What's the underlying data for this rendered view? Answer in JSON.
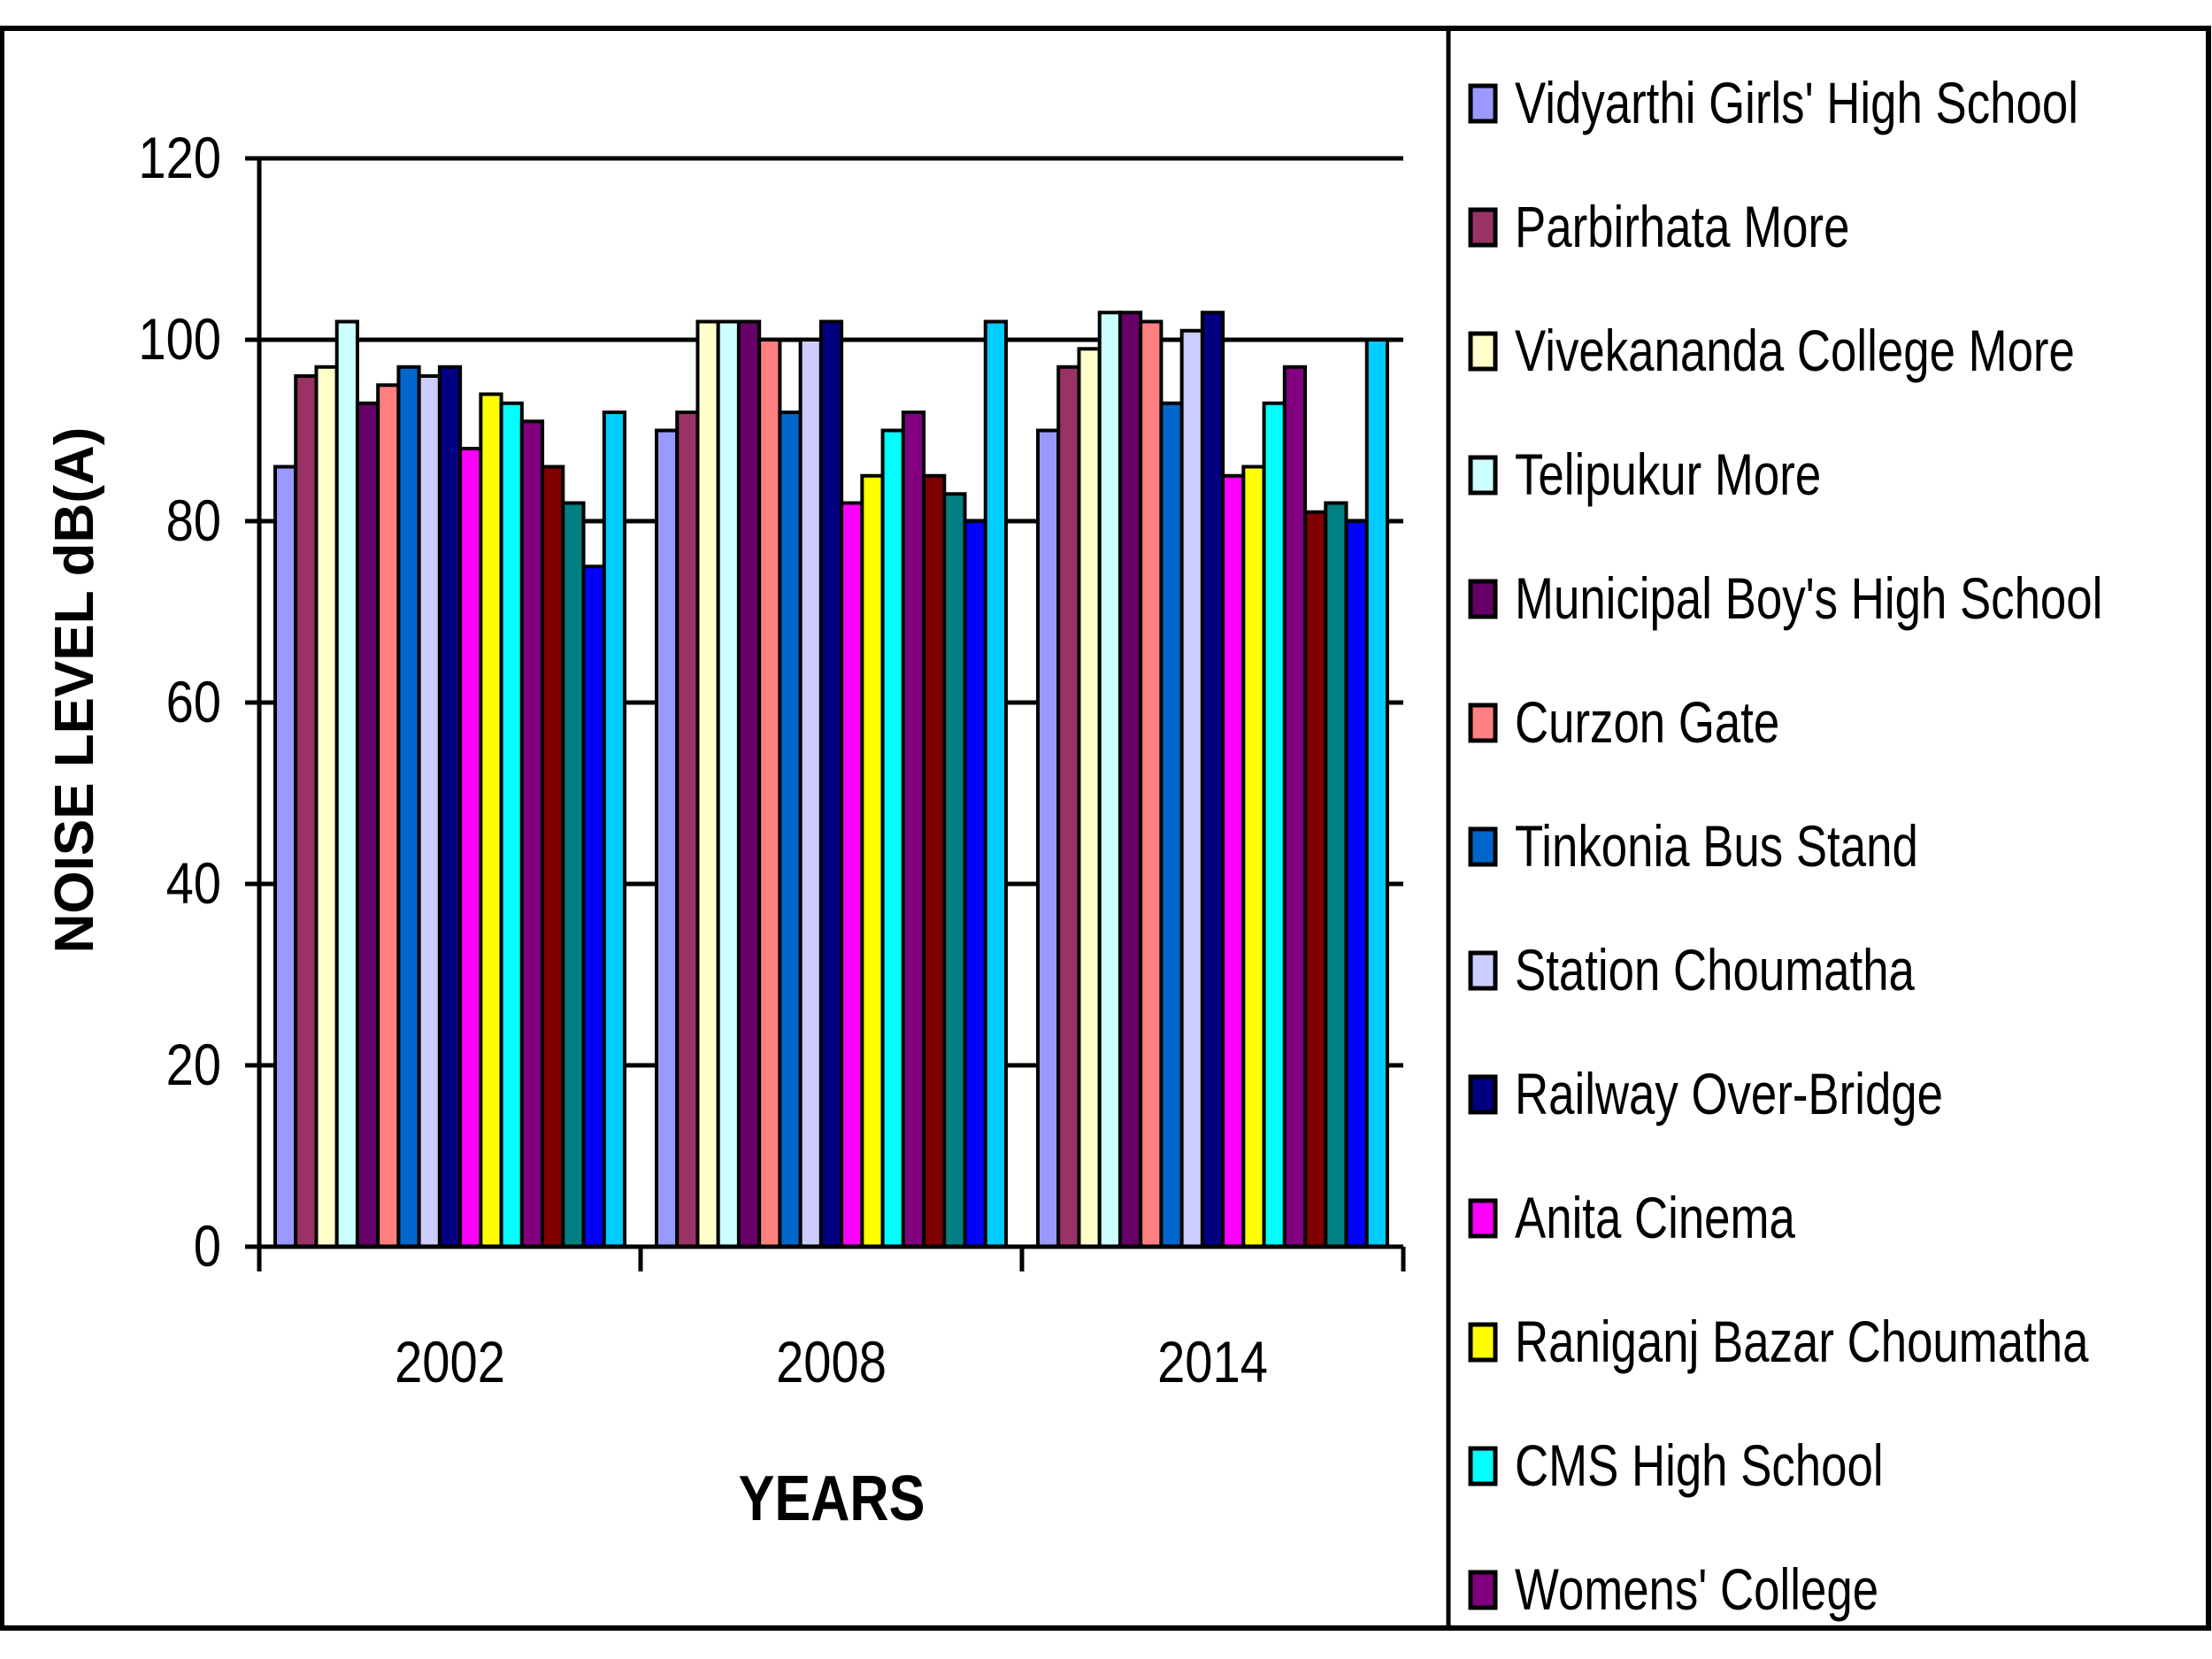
{
  "chart_data": {
    "type": "bar",
    "xlabel": "YEARS",
    "ylabel": "NOISE LEVEL dB(A)",
    "categories": [
      "2002",
      "2008",
      "2014"
    ],
    "ylim": [
      0,
      120
    ],
    "yticks": [
      0,
      20,
      40,
      60,
      80,
      100,
      120
    ],
    "grid": true,
    "legend_position": "right",
    "series": [
      {
        "name": "Vidyarthi Girls' High School",
        "color": "#9999FF",
        "values": [
          86,
          90,
          90
        ]
      },
      {
        "name": "Parbirhata More",
        "color": "#993366",
        "values": [
          96,
          92,
          97
        ]
      },
      {
        "name": "Vivekananda College More",
        "color": "#FFFFCC",
        "values": [
          97,
          102,
          99
        ]
      },
      {
        "name": "Telipukur More",
        "color": "#CCFFFF",
        "values": [
          102,
          102,
          103
        ]
      },
      {
        "name": "Municipal Boy's High School",
        "color": "#660066",
        "values": [
          93,
          102,
          103
        ]
      },
      {
        "name": "Curzon Gate",
        "color": "#FF8080",
        "values": [
          95,
          100,
          102
        ]
      },
      {
        "name": "Tinkonia Bus Stand",
        "color": "#0066CC",
        "values": [
          97,
          92,
          93
        ]
      },
      {
        "name": "Station Choumatha",
        "color": "#CCCCFF",
        "values": [
          96,
          100,
          101
        ]
      },
      {
        "name": "Railway Over-Bridge",
        "color": "#000080",
        "values": [
          97,
          102,
          103
        ]
      },
      {
        "name": "Anita Cinema",
        "color": "#FF00FF",
        "values": [
          88,
          82,
          85
        ]
      },
      {
        "name": "Raniganj Bazar Choumatha",
        "color": "#FFFF00",
        "values": [
          94,
          85,
          86
        ]
      },
      {
        "name": "CMS High School",
        "color": "#00FFFF",
        "values": [
          93,
          90,
          93
        ]
      },
      {
        "name": "Womens' College",
        "color": "#800080",
        "values": [
          91,
          92,
          97
        ]
      },
      {
        "color": "#800000",
        "values": [
          86,
          85,
          81
        ]
      },
      {
        "color": "#008080",
        "values": [
          82,
          83,
          82
        ]
      },
      {
        "color": "#0000FF",
        "values": [
          75,
          80,
          80
        ]
      },
      {
        "color": "#00CCFF",
        "values": [
          92,
          102,
          100
        ]
      }
    ]
  }
}
